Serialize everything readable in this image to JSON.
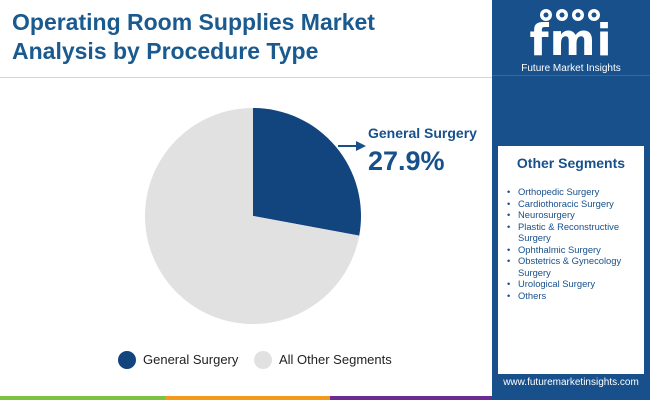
{
  "header": {
    "title_line1": "Operating Room Supplies Market",
    "title_line2": "Analysis by Procedure Type"
  },
  "brand": {
    "logo_text": "fmi",
    "tagline": "Future Market Insights",
    "url": "www.futuremarketinsights.com"
  },
  "colors": {
    "primary": "#17508b",
    "pie_highlight": "#12447d",
    "pie_rest": "#e1e1e1",
    "accent_green": "#7cc243",
    "accent_orange": "#f39a1e",
    "accent_purple": "#6a2c91"
  },
  "chart_data": {
    "type": "pie",
    "slices": [
      {
        "label": "General Surgery",
        "value": 27.9,
        "value_label": "27.9%",
        "color": "#12447d"
      },
      {
        "label": "All Other Segments",
        "value": 72.1,
        "color": "#e1e1e1"
      }
    ],
    "callout": {
      "label": "General Surgery",
      "value": "27.9%"
    },
    "legend": [
      "General Surgery",
      "All Other Segments"
    ],
    "legend_position": "bottom"
  },
  "other_segments": {
    "heading": "Other Segments",
    "items": [
      "Orthopedic Surgery",
      "Cardiothoracic Surgery",
      "Neurosurgery",
      "Plastic & Reconstructive Surgery",
      "Ophthalmic Surgery",
      "Obstetrics & Gynecology Surgery",
      "Urological Surgery",
      "Others"
    ]
  }
}
